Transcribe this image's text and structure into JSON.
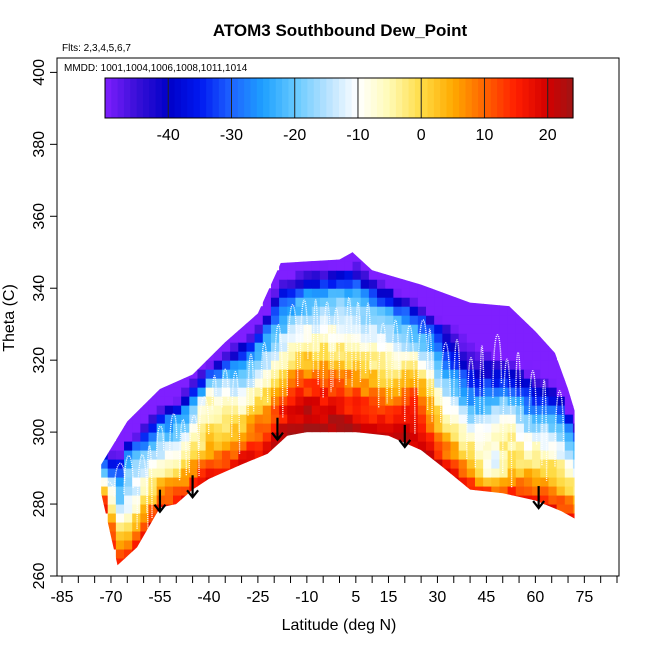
{
  "chart_data": {
    "type": "heatmap",
    "title": "ATOM3 Southbound Dew_Point",
    "flights_label": "Flts: 2,3,4,5,6,7",
    "dates_label": "MMDD: 1001,1004,1006,1008,1011,1014",
    "xlabel": "Latitude (deg N)",
    "ylabel": "Theta (C)",
    "xlim": [
      -85,
      85
    ],
    "ylim": [
      260,
      404
    ],
    "x_ticks": [
      -85,
      -70,
      -55,
      -40,
      -25,
      -10,
      5,
      15,
      30,
      45,
      60,
      75
    ],
    "x_minor_ticks": [
      -80,
      -75,
      -65,
      -60,
      -50,
      -45,
      -35,
      -30,
      -20,
      -15,
      -5,
      0,
      10,
      20,
      25,
      35,
      40,
      50,
      55,
      65,
      70,
      80,
      85
    ],
    "y_ticks": [
      260,
      280,
      300,
      320,
      340,
      360,
      380,
      400
    ],
    "colorbar": {
      "min": -50,
      "max": 24,
      "ticks": [
        -40,
        -30,
        -20,
        -10,
        0,
        10,
        20
      ],
      "color_stops": [
        {
          "value": -50,
          "color": "#7F1FFF"
        },
        {
          "value": -45,
          "color": "#3A0FD8"
        },
        {
          "value": -40,
          "color": "#0000C8"
        },
        {
          "value": -35,
          "color": "#0018F0"
        },
        {
          "value": -30,
          "color": "#1E64FF"
        },
        {
          "value": -25,
          "color": "#1EA0FF"
        },
        {
          "value": -20,
          "color": "#64C8FF"
        },
        {
          "value": -15,
          "color": "#B4E1FF"
        },
        {
          "value": -10,
          "color": "#FFFFFF"
        },
        {
          "value": -5,
          "color": "#FFFAB4"
        },
        {
          "value": 0,
          "color": "#FFDC46"
        },
        {
          "value": 5,
          "color": "#FFAA00"
        },
        {
          "value": 10,
          "color": "#FF6400"
        },
        {
          "value": 15,
          "color": "#FF1E00"
        },
        {
          "value": 20,
          "color": "#D20000"
        },
        {
          "value": 24,
          "color": "#A01414"
        }
      ]
    },
    "coverage_upper_bound": [
      {
        "lat": -73,
        "theta": 291
      },
      {
        "lat": -65,
        "theta": 303
      },
      {
        "lat": -55,
        "theta": 312
      },
      {
        "lat": -45,
        "theta": 316
      },
      {
        "lat": -35,
        "theta": 325
      },
      {
        "lat": -25,
        "theta": 333
      },
      {
        "lat": -18,
        "theta": 347
      },
      {
        "lat": 0,
        "theta": 348
      },
      {
        "lat": 4,
        "theta": 350
      },
      {
        "lat": 10,
        "theta": 345
      },
      {
        "lat": 25,
        "theta": 341
      },
      {
        "lat": 40,
        "theta": 336
      },
      {
        "lat": 52,
        "theta": 335
      },
      {
        "lat": 60,
        "theta": 328
      },
      {
        "lat": 66,
        "theta": 322
      },
      {
        "lat": 70,
        "theta": 312
      },
      {
        "lat": 72,
        "theta": 306
      }
    ],
    "coverage_lower_bound": [
      {
        "lat": -73,
        "theta": 283
      },
      {
        "lat": -68,
        "theta": 263
      },
      {
        "lat": -62,
        "theta": 268
      },
      {
        "lat": -55,
        "theta": 279
      },
      {
        "lat": -50,
        "theta": 280
      },
      {
        "lat": -45,
        "theta": 284
      },
      {
        "lat": -40,
        "theta": 287
      },
      {
        "lat": -30,
        "theta": 291
      },
      {
        "lat": -22,
        "theta": 294
      },
      {
        "lat": -16,
        "theta": 299
      },
      {
        "lat": -10,
        "theta": 300
      },
      {
        "lat": 5,
        "theta": 300
      },
      {
        "lat": 15,
        "theta": 299
      },
      {
        "lat": 25,
        "theta": 295
      },
      {
        "lat": 32,
        "theta": 290
      },
      {
        "lat": 40,
        "theta": 284
      },
      {
        "lat": 50,
        "theta": 283
      },
      {
        "lat": 60,
        "theta": 281
      },
      {
        "lat": 68,
        "theta": 278
      },
      {
        "lat": 72,
        "theta": 276
      }
    ],
    "arrows": [
      {
        "lat": -55,
        "theta": 284
      },
      {
        "lat": -45,
        "theta": 288
      },
      {
        "lat": -19,
        "theta": 304
      },
      {
        "lat": 20,
        "theta": 302
      },
      {
        "lat": 61,
        "theta": 285
      }
    ]
  }
}
